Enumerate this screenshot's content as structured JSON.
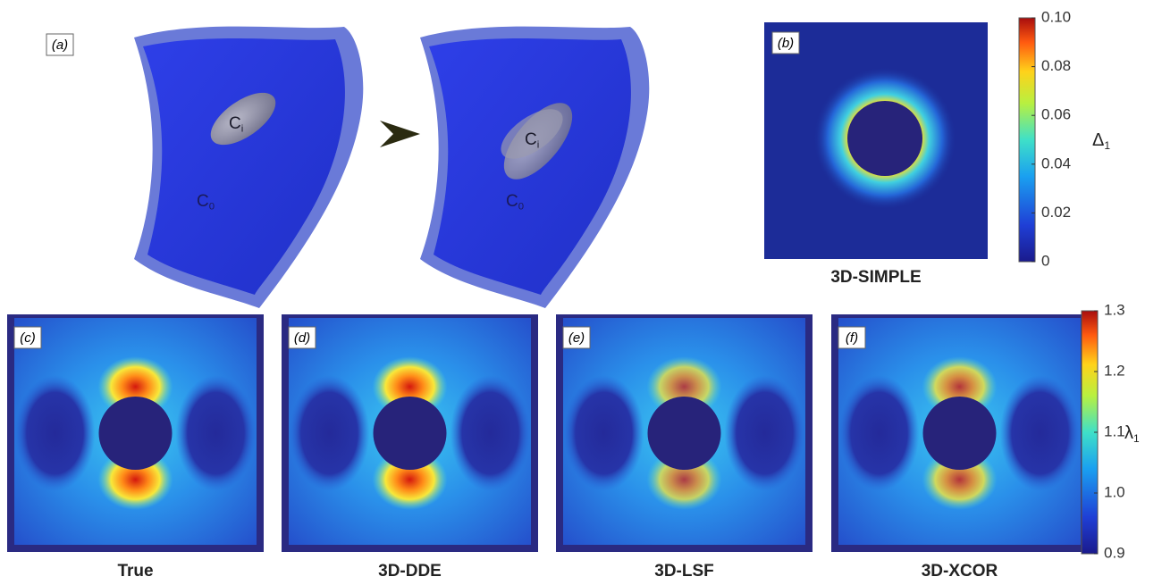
{
  "panels": [
    {
      "label": "(a)",
      "inclusion": {
        "symbol": "C",
        "sub": "i"
      },
      "matrix": {
        "symbol": "C",
        "sub": "0"
      }
    },
    {
      "label": "(b)",
      "caption": "3D-SIMPLE"
    },
    {
      "label": "(c)",
      "caption": "True"
    },
    {
      "label": "(d)",
      "caption": "3D-DDE"
    },
    {
      "label": "(e)",
      "caption": "3D-LSF"
    },
    {
      "label": "(f)",
      "caption": "3D-XCOR"
    }
  ],
  "colorbars": [
    {
      "symbol": "Δ",
      "sub": "1",
      "ticks": [
        "0.10",
        "0.08",
        "0.06",
        "0.04",
        "0.02",
        "0"
      ]
    },
    {
      "symbol": "λ",
      "sub": "1",
      "ticks": [
        "1.3",
        "1.2",
        "1.1",
        "1.0",
        "0.9"
      ]
    }
  ]
}
